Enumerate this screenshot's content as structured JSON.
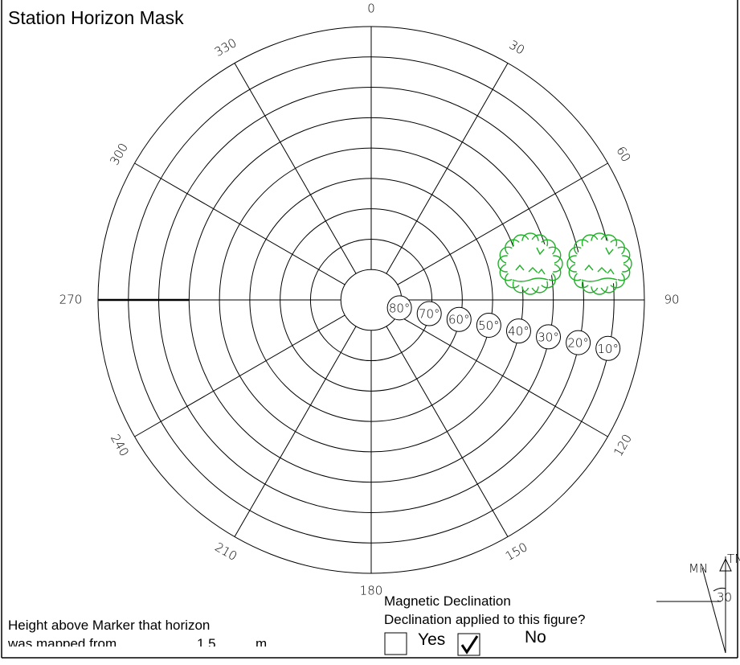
{
  "title": "Station Horizon Mask",
  "azimuths": [
    0,
    30,
    60,
    90,
    120,
    150,
    180,
    210,
    240,
    270,
    300,
    330
  ],
  "elevations": [
    "80°",
    "70°",
    "60°",
    "50°",
    "40°",
    "30°",
    "20°",
    "10°"
  ],
  "declination": {
    "label": "Magnetic Declination",
    "question": "Declination applied to this figure?",
    "yes": "Yes",
    "no": "No"
  },
  "height": {
    "line1": "Height above Marker that horizon",
    "line2": "was mapped from",
    "value": "1.5",
    "unit": "m"
  },
  "compass": {
    "true_north": "TN",
    "magnetic_north": "MN",
    "angle": "30"
  }
}
